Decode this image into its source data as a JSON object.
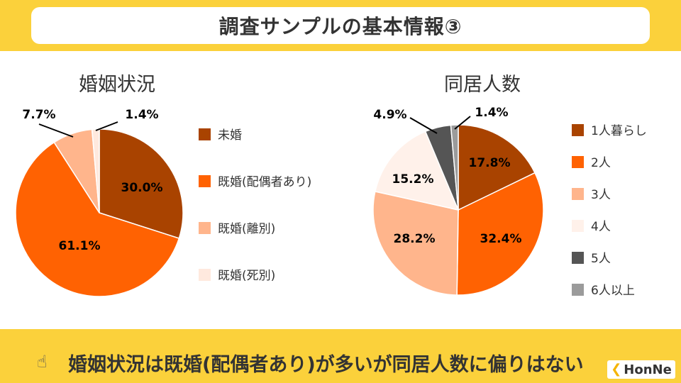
{
  "header": {
    "title": "調査サンプルの基本情報③"
  },
  "chart_data": [
    {
      "type": "pie",
      "title": "婚姻状況",
      "categories": [
        "未婚",
        "既婚(配偶者あり)",
        "既婚(離別)",
        "既婚(死別)"
      ],
      "values": [
        30.0,
        61.1,
        7.7,
        1.4
      ],
      "data_labels": [
        "30.0%",
        "61.1%",
        "7.7%",
        "1.4%"
      ],
      "colors": [
        "#A94300",
        "#FF6202",
        "#FFB58C",
        "#FFE9DE"
      ],
      "legend": "right"
    },
    {
      "type": "pie",
      "title": "同居人数",
      "categories": [
        "1人暮らし",
        "2人",
        "3人",
        "4人",
        "5人",
        "6人以上"
      ],
      "legend_labels": [
        "1人暮らし",
        "2人",
        "3人",
        " 4人",
        " 5人",
        " 6人以上"
      ],
      "values": [
        17.8,
        32.4,
        28.2,
        15.2,
        4.9,
        1.4
      ],
      "data_labels": [
        "17.8%",
        "32.4%",
        "28.2%",
        "15.2%",
        "4.9%",
        "1.4%"
      ],
      "colors": [
        "#A94300",
        "#FF6202",
        "#FFB58C",
        "#FFF1EA",
        "#555555",
        "#9B9B9B"
      ],
      "legend": "right"
    }
  ],
  "footer": {
    "hand_icon": "pointing-hand-icon",
    "message": "婚姻状況は既婚(配偶者あり)が多いが同居人数に偏りはない"
  },
  "logo": {
    "text": "HonNe",
    "mark": "❮"
  }
}
